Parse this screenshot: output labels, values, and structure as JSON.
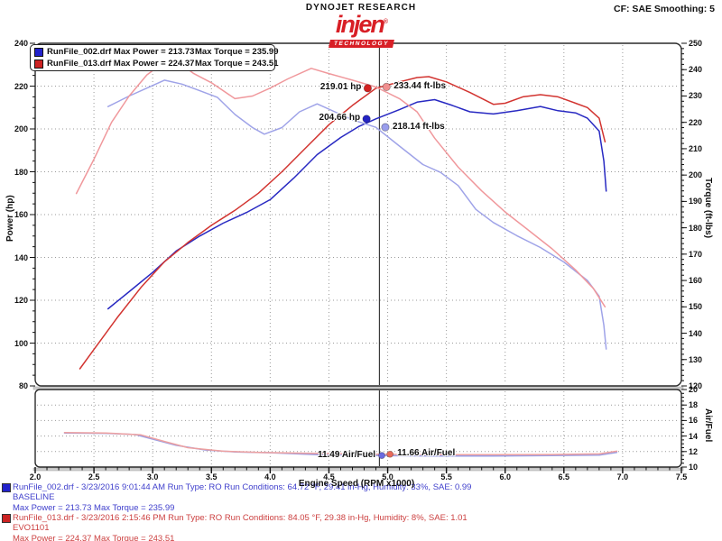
{
  "header": {
    "brand": "DYNOJET RESEARCH",
    "logo": {
      "text": "injen",
      "reg": "®",
      "sub": "TECHNOLOGY"
    },
    "correction": "CF: SAE  Smoothing: 5"
  },
  "legend": {
    "rows": [
      {
        "swatch": "#2222cc",
        "label": "RunFile_002.drf Max Power = 213.73",
        "torque": "Max Torque = 235.99"
      },
      {
        "swatch": "#cc2222",
        "label": "RunFile_013.drf Max Power = 224.37",
        "torque": "Max Torque = 243.51"
      }
    ]
  },
  "annotations": {
    "cursor_rpm": 4.93,
    "main": [
      {
        "label": "219.01 hp",
        "marker": "#d42020",
        "rpm": 4.83,
        "value": 219.01,
        "axis": "power",
        "side": "left"
      },
      {
        "label": "233.44 ft-lbs",
        "marker": "#f08f8f",
        "rpm": 4.99,
        "value": 233.44,
        "axis": "torque",
        "side": "right"
      },
      {
        "label": "204.66 hp",
        "marker": "#2424c4",
        "rpm": 4.82,
        "value": 204.66,
        "axis": "power",
        "side": "left"
      },
      {
        "label": "218.14 ft-lbs",
        "marker": "#9a9eec",
        "rpm": 4.98,
        "value": 218.14,
        "axis": "torque",
        "side": "right"
      }
    ],
    "af": [
      {
        "label": "11.49 Air/Fuel",
        "marker": "#6a6ae0",
        "rpm": 4.95,
        "value": 11.49,
        "side": "left"
      },
      {
        "label": "11.66 Air/Fuel",
        "marker": "#e86a5a",
        "rpm": 5.02,
        "value": 11.66,
        "side": "right"
      }
    ]
  },
  "footer": {
    "blocks": [
      {
        "color": "#4040cc",
        "swatch": "#2222cc",
        "lines": [
          "RunFile_002.drf - 3/23/2016 9:01:44 AM  Run Type: RO  Run Conditions: 64.72 °F, 29.41 in-Hg,  Humidity:  33%, SAE: 0.99",
          "BASELINE",
          "Max Power = 213.73  Max Torque = 235.99"
        ]
      },
      {
        "color": "#cc4040",
        "swatch": "#cc2222",
        "lines": [
          "RunFile_013.drf - 3/23/2016 2:15:46 PM  Run Type: RO  Run Conditions: 84.05 °F, 29.38 in-Hg,  Humidity:  8%, SAE: 1.01",
          "EVO1101",
          "Max Power = 224.37  Max Torque = 243.51"
        ]
      }
    ]
  },
  "chart_data": {
    "type": "line",
    "xlabel": "Engine Speed (RPM x1000)",
    "x_range": [
      2.0,
      7.5
    ],
    "x_ticks": [
      "2.0",
      "2.5",
      "3.0",
      "3.5",
      "4.0",
      "4.5",
      "5.0",
      "5.5",
      "6.0",
      "6.5",
      "7.0",
      "7.5"
    ],
    "grid": "dotted",
    "axes": {
      "power": {
        "label": "Power (hp)",
        "range": [
          80,
          240
        ],
        "ticks": [
          240,
          220,
          200,
          180,
          160,
          140,
          120,
          100,
          80
        ]
      },
      "torque": {
        "label": "Torque (ft-lbs)",
        "range": [
          120,
          250
        ],
        "ticks": [
          250,
          240,
          230,
          220,
          210,
          200,
          190,
          180,
          170,
          160,
          150,
          140,
          130,
          120
        ]
      },
      "af": {
        "label": "Air/Fuel",
        "range": [
          10,
          20
        ],
        "ticks": [
          20,
          18,
          16,
          14,
          12,
          10
        ]
      }
    },
    "series": [
      {
        "name": "RunFile_002 Power (hp)",
        "panel": "main",
        "axis": "power",
        "color": "#2829c2",
        "points": [
          [
            2.62,
            116
          ],
          [
            2.8,
            124
          ],
          [
            3.0,
            133
          ],
          [
            3.2,
            143
          ],
          [
            3.4,
            150
          ],
          [
            3.6,
            156
          ],
          [
            3.8,
            161
          ],
          [
            4.0,
            167
          ],
          [
            4.2,
            177
          ],
          [
            4.4,
            188
          ],
          [
            4.6,
            196
          ],
          [
            4.75,
            201
          ],
          [
            4.9,
            204.7
          ],
          [
            5.1,
            209
          ],
          [
            5.25,
            212.5
          ],
          [
            5.4,
            213.7
          ],
          [
            5.55,
            211
          ],
          [
            5.7,
            208
          ],
          [
            5.9,
            207
          ],
          [
            6.1,
            208.5
          ],
          [
            6.3,
            210.5
          ],
          [
            6.45,
            208.5
          ],
          [
            6.6,
            207.5
          ],
          [
            6.7,
            205
          ],
          [
            6.8,
            199
          ],
          [
            6.84,
            185
          ],
          [
            6.86,
            171
          ]
        ]
      },
      {
        "name": "RunFile_002 Torque (ft-lbs)",
        "panel": "main",
        "axis": "torque",
        "color": "#9fa3e8",
        "points": [
          [
            2.62,
            226
          ],
          [
            2.8,
            230
          ],
          [
            3.0,
            234
          ],
          [
            3.1,
            236
          ],
          [
            3.25,
            234.5
          ],
          [
            3.4,
            232
          ],
          [
            3.55,
            229.5
          ],
          [
            3.7,
            223
          ],
          [
            3.85,
            218
          ],
          [
            3.95,
            215.5
          ],
          [
            4.1,
            218
          ],
          [
            4.25,
            224
          ],
          [
            4.4,
            227
          ],
          [
            4.55,
            224
          ],
          [
            4.7,
            221
          ],
          [
            4.9,
            218.1
          ],
          [
            5.1,
            211
          ],
          [
            5.3,
            204
          ],
          [
            5.45,
            201
          ],
          [
            5.6,
            196
          ],
          [
            5.75,
            187
          ],
          [
            5.9,
            182
          ],
          [
            6.1,
            177
          ],
          [
            6.3,
            172.5
          ],
          [
            6.5,
            167
          ],
          [
            6.7,
            160
          ],
          [
            6.8,
            154
          ],
          [
            6.84,
            143
          ],
          [
            6.86,
            134
          ]
        ]
      },
      {
        "name": "RunFile_013 Power (hp)",
        "panel": "main",
        "axis": "power",
        "color": "#d23430",
        "points": [
          [
            2.38,
            88
          ],
          [
            2.5,
            97
          ],
          [
            2.7,
            112
          ],
          [
            2.9,
            126
          ],
          [
            3.1,
            138
          ],
          [
            3.3,
            147
          ],
          [
            3.5,
            155
          ],
          [
            3.7,
            162
          ],
          [
            3.9,
            170
          ],
          [
            4.1,
            180
          ],
          [
            4.3,
            191
          ],
          [
            4.5,
            202
          ],
          [
            4.7,
            211
          ],
          [
            4.9,
            219
          ],
          [
            5.1,
            222
          ],
          [
            5.25,
            224
          ],
          [
            5.35,
            224.4
          ],
          [
            5.5,
            222
          ],
          [
            5.7,
            217
          ],
          [
            5.9,
            211.5
          ],
          [
            6.0,
            212
          ],
          [
            6.15,
            215
          ],
          [
            6.3,
            216
          ],
          [
            6.45,
            215
          ],
          [
            6.6,
            212
          ],
          [
            6.7,
            210
          ],
          [
            6.8,
            205
          ],
          [
            6.85,
            194
          ]
        ]
      },
      {
        "name": "RunFile_013 Torque (ft-lbs)",
        "panel": "main",
        "axis": "torque",
        "color": "#f0989c",
        "points": [
          [
            2.35,
            193
          ],
          [
            2.5,
            206
          ],
          [
            2.65,
            220
          ],
          [
            2.8,
            230
          ],
          [
            2.95,
            238
          ],
          [
            3.1,
            243
          ],
          [
            3.2,
            243.5
          ],
          [
            3.35,
            238.5
          ],
          [
            3.5,
            235
          ],
          [
            3.7,
            229
          ],
          [
            3.85,
            230
          ],
          [
            4.0,
            233
          ],
          [
            4.15,
            236.5
          ],
          [
            4.35,
            240.5
          ],
          [
            4.5,
            238.5
          ],
          [
            4.7,
            236
          ],
          [
            4.9,
            233.4
          ],
          [
            5.1,
            229
          ],
          [
            5.25,
            224
          ],
          [
            5.4,
            214
          ],
          [
            5.6,
            203
          ],
          [
            5.8,
            194
          ],
          [
            6.0,
            186
          ],
          [
            6.2,
            179
          ],
          [
            6.4,
            172
          ],
          [
            6.6,
            164
          ],
          [
            6.75,
            157
          ],
          [
            6.85,
            150
          ]
        ]
      },
      {
        "name": "RunFile_002 Air/Fuel",
        "panel": "af",
        "axis": "af",
        "color": "#9a9ee4",
        "points": [
          [
            2.25,
            14.4
          ],
          [
            2.6,
            14.35
          ],
          [
            2.85,
            14.2
          ],
          [
            3.0,
            13.6
          ],
          [
            3.2,
            12.8
          ],
          [
            3.45,
            12.2
          ],
          [
            3.7,
            11.95
          ],
          [
            4.0,
            11.85
          ],
          [
            4.4,
            11.6
          ],
          [
            4.9,
            11.49
          ],
          [
            5.4,
            11.42
          ],
          [
            5.9,
            11.42
          ],
          [
            6.4,
            11.48
          ],
          [
            6.8,
            11.55
          ],
          [
            6.95,
            11.9
          ]
        ]
      },
      {
        "name": "RunFile_013 Air/Fuel",
        "panel": "af",
        "axis": "af",
        "color": "#eda0a0",
        "points": [
          [
            2.25,
            14.45
          ],
          [
            2.6,
            14.4
          ],
          [
            2.9,
            14.15
          ],
          [
            3.1,
            13.3
          ],
          [
            3.3,
            12.5
          ],
          [
            3.6,
            12.05
          ],
          [
            3.9,
            11.9
          ],
          [
            4.4,
            11.75
          ],
          [
            4.9,
            11.66
          ],
          [
            5.4,
            11.6
          ],
          [
            5.9,
            11.6
          ],
          [
            6.4,
            11.62
          ],
          [
            6.8,
            11.7
          ],
          [
            6.95,
            12.05
          ]
        ]
      }
    ]
  }
}
